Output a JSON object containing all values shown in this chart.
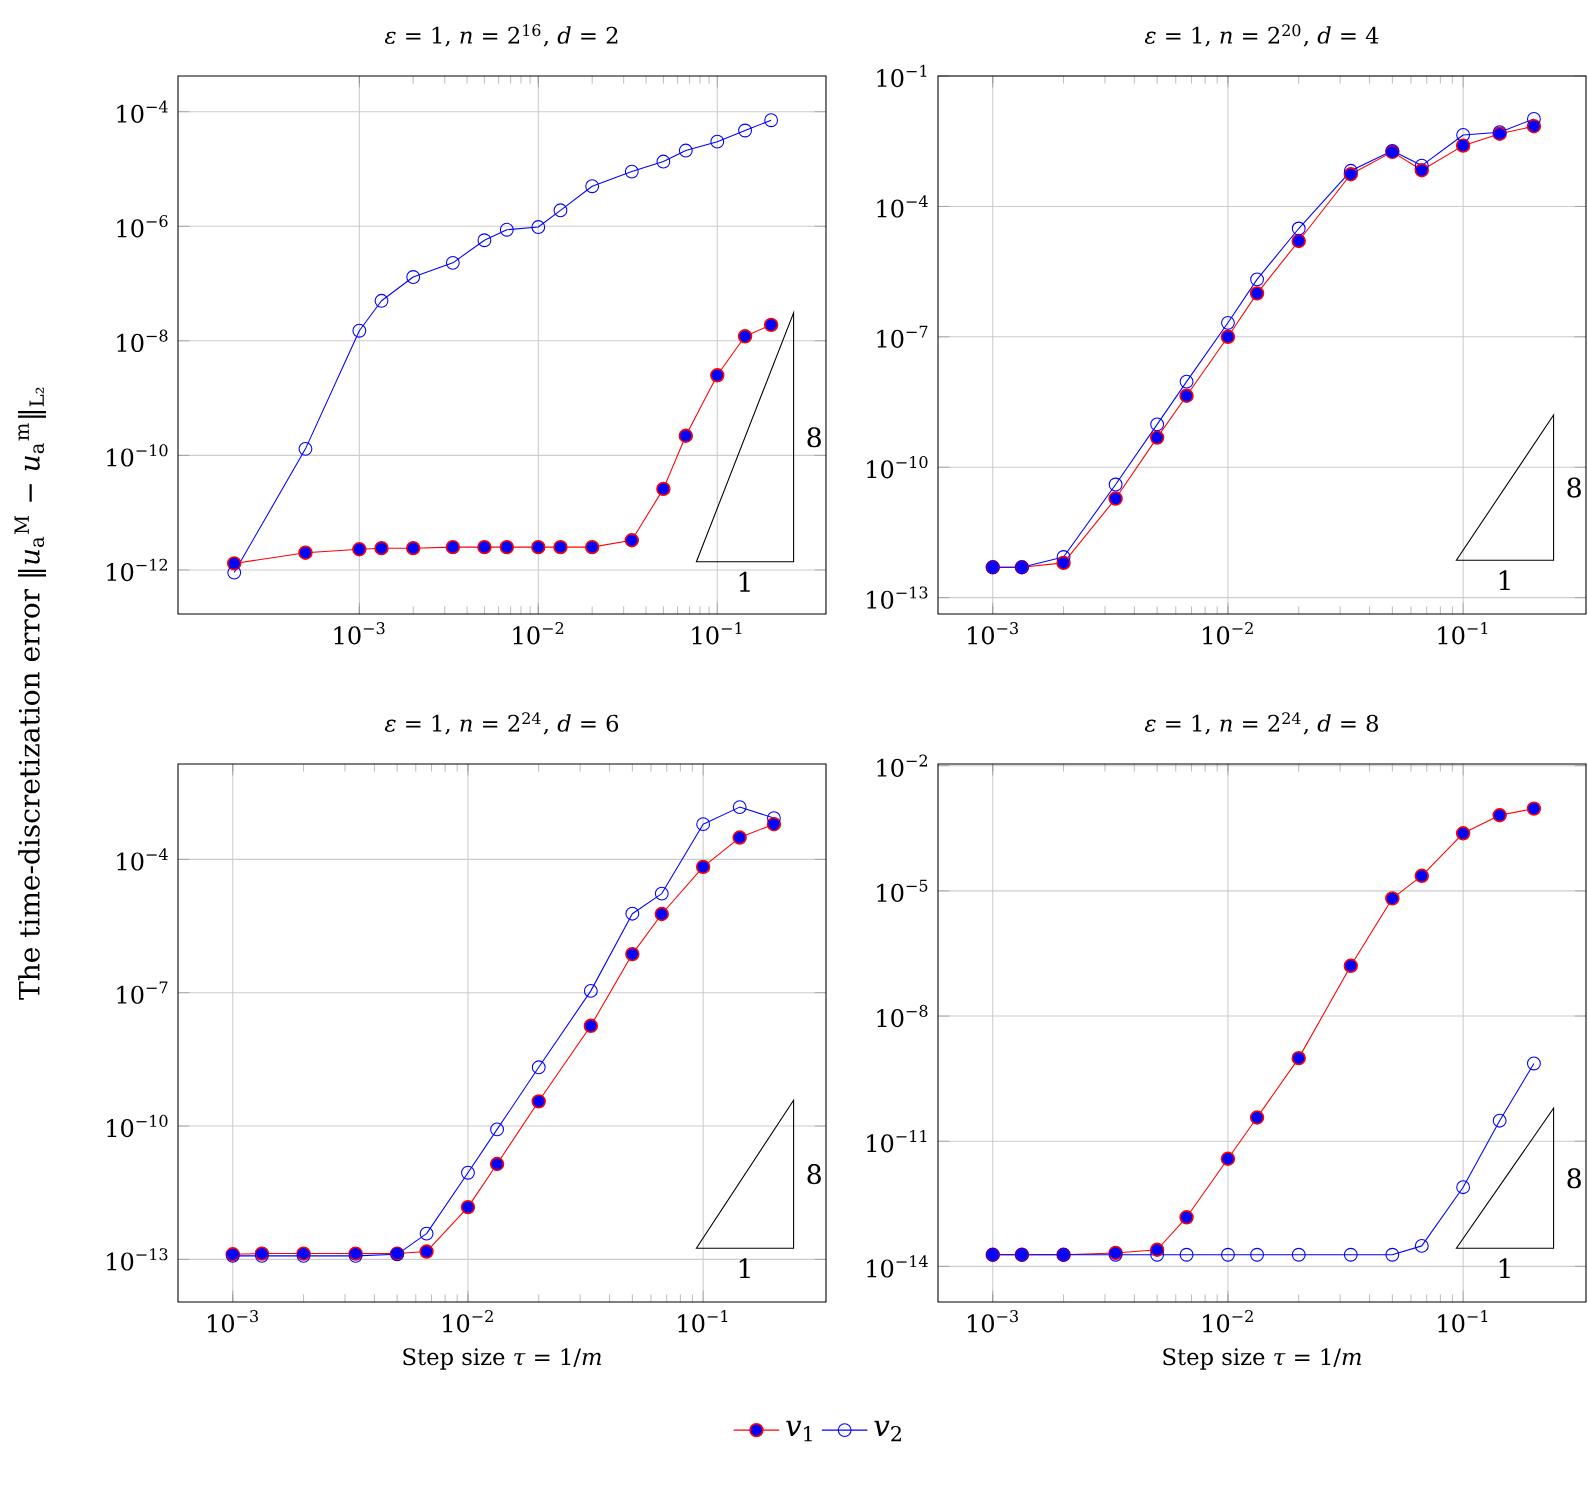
{
  "chart_data": [
    {
      "type": "line",
      "title": "*ε* = 1, *n* = 2$^{16}$, *d* = 2",
      "ylabel": "The time-discretization error ‖*u*$_{a}$$^{M}$ − *u*$_{a}$$^{m}$‖$_{L₂}$",
      "log": "xy",
      "grid": true,
      "marker": "circle",
      "x": [
        0.0002,
        0.0005,
        0.001,
        0.00133,
        0.002,
        0.00333,
        0.005,
        0.00667,
        0.01,
        0.0133,
        0.02,
        0.0333,
        0.05,
        0.0667,
        0.1,
        0.143,
        0.2
      ],
      "series": [
        {
          "color": "#ff0000",
          "values": [
            1.3e-12,
            2e-12,
            2.3e-12,
            2.4e-12,
            2.4e-12,
            2.5e-12,
            2.5e-12,
            2.5e-12,
            2.5e-12,
            2.5e-12,
            2.5e-12,
            3.3e-12,
            2.6e-11,
            2.2e-10,
            2.5e-09,
            1.2e-08,
            1.9e-08
          ]
        },
        {
          "color": "#0000ff",
          "values": [
            9e-13,
            1.3e-10,
            1.5e-08,
            5e-08,
            1.3e-07,
            2.3e-07,
            5.7e-07,
            8.7e-07,
            9.7e-07,
            1.9e-06,
            5e-06,
            9e-06,
            1.35e-05,
            2.1e-05,
            3e-05,
            4.7e-05,
            7.1e-05
          ]
        }
      ],
      "xlim": [
        9.7e-05,
        0.405
      ],
      "ylim": [
        1.7e-13,
        0.00042
      ],
      "xticks": [
        {
          "value": 0.001,
          "label": "10$^{−3}$"
        },
        {
          "value": 0.01,
          "label": "10$^{−2}$"
        },
        {
          "value": 0.1,
          "label": "10$^{−1}$"
        }
      ],
      "yticks": [
        {
          "value": 1e-12,
          "label": "10$^{−12}$"
        },
        {
          "value": 1e-10,
          "label": "10$^{−10}$"
        },
        {
          "value": 1e-08,
          "label": "10$^{−8}$"
        },
        {
          "value": 1e-06,
          "label": "10$^{−6}$"
        },
        {
          "value": 0.0001,
          "label": "10$^{−4}$"
        }
      ],
      "annotations": [
        "8",
        "1"
      ]
    },
    {
      "type": "line",
      "title": "*ε* = 1, *n* = 2$^{20}$, *d* = 4",
      "log": "xy",
      "grid": true,
      "marker": "circle",
      "x": [
        0.001,
        0.00133,
        0.002,
        0.00333,
        0.005,
        0.00667,
        0.01,
        0.0133,
        0.02,
        0.0333,
        0.05,
        0.0667,
        0.1,
        0.143,
        0.2
      ],
      "series": [
        {
          "color": "#ff0000",
          "values": [
            5e-13,
            5e-13,
            6.3e-13,
            1.9e-11,
            4.8e-10,
            4.4e-09,
            1e-07,
            1e-06,
            1.6e-05,
            0.00055,
            0.0018,
            0.00068,
            0.0025,
            0.0047,
            0.007
          ]
        },
        {
          "color": "#0000ff",
          "values": [
            5e-13,
            5e-13,
            8.6e-13,
            4e-11,
            9.7e-10,
            9.3e-09,
            2.1e-07,
            2.1e-06,
            3.1e-05,
            0.00066,
            0.0019,
            0.00087,
            0.0044,
            0.0051,
            0.0103
          ]
        }
      ],
      "xlim": [
        0.000585,
        0.333
      ],
      "ylim": [
        4.2e-14,
        0.1
      ],
      "xticks": [
        {
          "value": 0.001,
          "label": "10$^{−3}$"
        },
        {
          "value": 0.01,
          "label": "10$^{−2}$"
        },
        {
          "value": 0.1,
          "label": "10$^{−1}$"
        }
      ],
      "yticks": [
        {
          "value": 1e-13,
          "label": "10$^{−13}$"
        },
        {
          "value": 1e-10,
          "label": "10$^{−10}$"
        },
        {
          "value": 1e-07,
          "label": "10$^{−7}$"
        },
        {
          "value": 0.0001,
          "label": "10$^{−4}$"
        },
        {
          "value": 0.1,
          "label": "10$^{−1}$"
        }
      ],
      "annotations": [
        "8",
        "1"
      ]
    },
    {
      "type": "line",
      "title": "*ε* = 1, *n* = 2$^{24}$, *d* = 6",
      "xlabel": "Step size *τ* = 1/*m*",
      "log": "xy",
      "grid": true,
      "marker": "circle",
      "x": [
        0.001,
        0.00133,
        0.002,
        0.00333,
        0.005,
        0.00667,
        0.01,
        0.0133,
        0.02,
        0.0333,
        0.05,
        0.0667,
        0.1,
        0.143,
        0.2
      ],
      "series": [
        {
          "color": "#ff0000",
          "values": [
            1.3e-13,
            1.35e-13,
            1.35e-13,
            1.35e-13,
            1.35e-13,
            1.5e-13,
            1.5e-12,
            1.4e-11,
            3.6e-10,
            1.8e-08,
            7.4e-07,
            5.9e-06,
            6.8e-05,
            0.00031,
            0.00062
          ]
        },
        {
          "color": "#0000ff",
          "values": [
            1.2e-13,
            1.2e-13,
            1.2e-13,
            1.2e-13,
            1.3e-13,
            3.8e-13,
            8.9e-12,
            8.4e-11,
            2.1e-09,
            1.1e-07,
            6e-06,
            1.7e-05,
            0.00062,
            0.0015,
            0.00085
          ]
        }
      ],
      "xlim": [
        0.000585,
        0.333
      ],
      "ylim": [
        1.1e-14,
        0.014
      ],
      "xticks": [
        {
          "value": 0.001,
          "label": "10$^{−3}$"
        },
        {
          "value": 0.01,
          "label": "10$^{−2}$"
        },
        {
          "value": 0.1,
          "label": "10$^{−1}$"
        }
      ],
      "yticks": [
        {
          "value": 1e-13,
          "label": "10$^{−13}$"
        },
        {
          "value": 1e-10,
          "label": "10$^{−10}$"
        },
        {
          "value": 1e-07,
          "label": "10$^{−7}$"
        },
        {
          "value": 0.0001,
          "label": "10$^{−4}$"
        }
      ],
      "annotations": [
        "8",
        "1"
      ]
    },
    {
      "type": "line",
      "title": "*ε* = 1, *n* = 2$^{24}$, *d* = 8",
      "xlabel": "Step size *τ* = 1/*m*",
      "log": "xy",
      "grid": true,
      "marker": "circle",
      "legend": "bottom",
      "x": [
        0.001,
        0.00133,
        0.002,
        0.00333,
        0.005,
        0.00667,
        0.01,
        0.0133,
        0.02,
        0.0333,
        0.05,
        0.0667,
        0.1,
        0.143,
        0.2
      ],
      "series": [
        {
          "name": "*v*$_{1}$",
          "color": "#ff0000",
          "values": [
            1.9e-14,
            1.9e-14,
            1.9e-14,
            2.1e-14,
            2.5e-14,
            1.5e-13,
            3.8e-12,
            3.7e-11,
            9.8e-10,
            1.6e-07,
            6.6e-06,
            2.3e-05,
            0.00024,
            0.00065,
            0.00094
          ]
        },
        {
          "name": "*v*$_{2}$",
          "color": "#0000ff",
          "values": [
            1.9e-14,
            1.9e-14,
            1.9e-14,
            1.9e-14,
            1.9e-14,
            1.9e-14,
            1.9e-14,
            1.9e-14,
            1.9e-14,
            1.9e-14,
            1.9e-14,
            3.1e-14,
            7.9e-13,
            3.1e-11,
            7.3e-10
          ]
        }
      ],
      "xlim": [
        0.000585,
        0.333
      ],
      "ylim": [
        1.4e-15,
        0.011
      ],
      "xticks": [
        {
          "value": 0.001,
          "label": "10$^{−3}$"
        },
        {
          "value": 0.01,
          "label": "10$^{−2}$"
        },
        {
          "value": 0.1,
          "label": "10$^{−1}$"
        }
      ],
      "yticks": [
        {
          "value": 1e-14,
          "label": "10$^{−14}$"
        },
        {
          "value": 1e-11,
          "label": "10$^{−11}$"
        },
        {
          "value": 1e-08,
          "label": "10$^{−8}$"
        },
        {
          "value": 1e-05,
          "label": "10$^{−5}$"
        },
        {
          "value": 0.01,
          "label": "10$^{−2}$"
        }
      ],
      "annotations": [
        "8",
        "1"
      ]
    }
  ]
}
